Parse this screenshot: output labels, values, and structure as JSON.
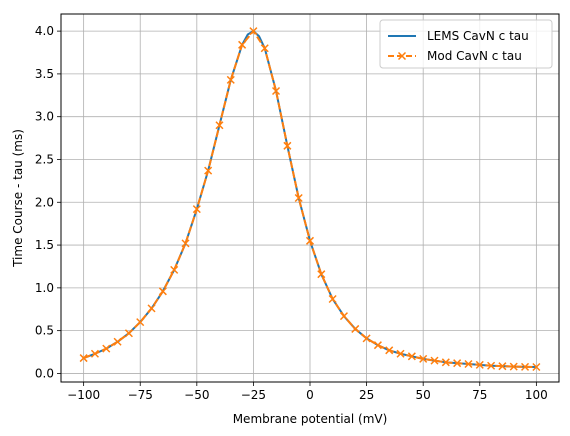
{
  "chart_data": {
    "type": "line",
    "xlabel": "Membrane potential (mV)",
    "ylabel": "Time Course - tau (ms)",
    "xlim": [
      -110,
      110
    ],
    "ylim": [
      -0.1,
      4.2
    ],
    "x_ticks": [
      -100,
      -75,
      -50,
      -25,
      0,
      25,
      50,
      75,
      100
    ],
    "y_ticks": [
      0.0,
      0.5,
      1.0,
      1.5,
      2.0,
      2.5,
      3.0,
      3.5,
      4.0
    ],
    "x_tick_labels": [
      "−100",
      "−75",
      "−50",
      "−25",
      "0",
      "25",
      "50",
      "75",
      "100"
    ],
    "y_tick_labels": [
      "0.0",
      "0.5",
      "1.0",
      "1.5",
      "2.0",
      "2.5",
      "3.0",
      "3.5",
      "4.0"
    ],
    "grid": true,
    "legend_position": "top-right",
    "series": [
      {
        "name": "LEMS CavN c tau",
        "color": "#1f77b4",
        "style": "solid",
        "marker": "none",
        "x": [
          -100,
          -95,
          -90,
          -85,
          -80,
          -75,
          -70,
          -65,
          -60,
          -55,
          -50,
          -45,
          -40,
          -35,
          -30,
          -27.5,
          -25,
          -22.5,
          -20,
          -15,
          -10,
          -5,
          0,
          5,
          10,
          15,
          20,
          25,
          30,
          35,
          40,
          45,
          50,
          55,
          60,
          65,
          70,
          75,
          80,
          85,
          90,
          95,
          100
        ],
        "y": [
          0.18,
          0.23,
          0.29,
          0.37,
          0.47,
          0.6,
          0.76,
          0.96,
          1.21,
          1.52,
          1.92,
          2.37,
          2.9,
          3.43,
          3.84,
          3.96,
          4.0,
          3.94,
          3.8,
          3.3,
          2.66,
          2.05,
          1.55,
          1.16,
          0.87,
          0.67,
          0.52,
          0.41,
          0.33,
          0.27,
          0.23,
          0.2,
          0.17,
          0.15,
          0.13,
          0.12,
          0.11,
          0.1,
          0.09,
          0.085,
          0.08,
          0.077,
          0.075
        ]
      },
      {
        "name": "Mod CavN c tau",
        "color": "#ff7f0e",
        "style": "dashed",
        "marker": "x",
        "x": [
          -100,
          -95,
          -90,
          -85,
          -80,
          -75,
          -70,
          -65,
          -60,
          -55,
          -50,
          -45,
          -40,
          -35,
          -30,
          -25,
          -20,
          -15,
          -10,
          -5,
          0,
          5,
          10,
          15,
          20,
          25,
          30,
          35,
          40,
          45,
          50,
          55,
          60,
          65,
          70,
          75,
          80,
          85,
          90,
          95,
          100
        ],
        "y": [
          0.18,
          0.23,
          0.29,
          0.37,
          0.47,
          0.6,
          0.76,
          0.96,
          1.21,
          1.52,
          1.92,
          2.37,
          2.9,
          3.43,
          3.84,
          4.0,
          3.8,
          3.3,
          2.66,
          2.05,
          1.55,
          1.16,
          0.87,
          0.67,
          0.52,
          0.41,
          0.33,
          0.27,
          0.23,
          0.2,
          0.17,
          0.15,
          0.13,
          0.12,
          0.11,
          0.1,
          0.09,
          0.085,
          0.08,
          0.077,
          0.075
        ]
      }
    ]
  }
}
